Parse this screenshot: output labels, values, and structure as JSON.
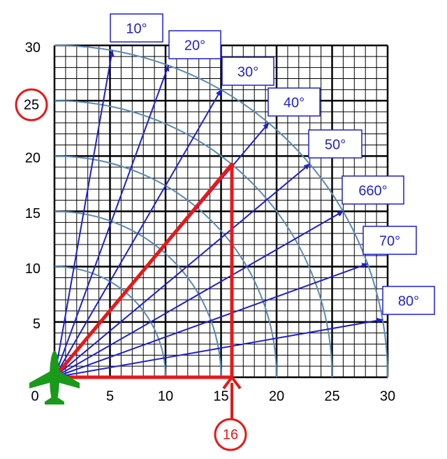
{
  "y_axis_labels": [
    "30",
    "25",
    "20",
    "15",
    "10",
    "5"
  ],
  "x_axis_labels": [
    "0",
    "5",
    "10",
    "15",
    "20",
    "25",
    "30"
  ],
  "rays": [
    "10°",
    "20°",
    "30°",
    "40°",
    "50°",
    "660°",
    "70°",
    "80°"
  ],
  "highlight_x": "16",
  "highlight_y": "25"
}
